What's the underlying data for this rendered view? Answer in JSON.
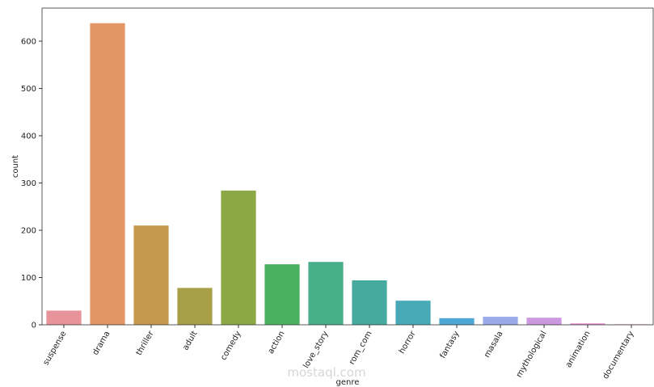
{
  "chart_data": {
    "type": "bar",
    "x_label": "genre",
    "y_label": "count",
    "categories": [
      "suspense",
      "drama",
      "thriller",
      "adult",
      "comedy",
      "action",
      "love_story",
      "rom_com",
      "horror",
      "fantasy",
      "masala",
      "mythological",
      "animation",
      "documentary"
    ],
    "values": [
      30,
      638,
      210,
      78,
      284,
      128,
      133,
      94,
      51,
      14,
      17,
      15,
      3,
      1
    ],
    "colors": [
      "#e8929a",
      "#e39565",
      "#c59a4e",
      "#a8a046",
      "#8ca845",
      "#4ab160",
      "#49ae8a",
      "#47aa9f",
      "#48aab7",
      "#4fa7d3",
      "#9aa9e8",
      "#cc99e0",
      "#e591d2",
      "#e78fb6"
    ],
    "ylim": [
      0,
      670
    ],
    "yticks": [
      0,
      100,
      200,
      300,
      400,
      500,
      600
    ],
    "watermark": "mostaql.com"
  }
}
